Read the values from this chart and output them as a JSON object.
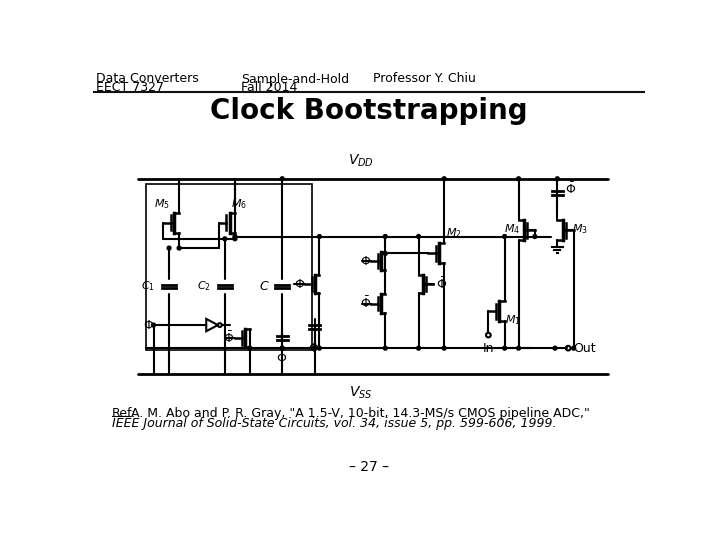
{
  "header_left_line1": "Data Converters",
  "header_left_line2": "EECT 7327",
  "header_center_line1": "Sample-and-Hold",
  "header_center_line2": "Fall 2014",
  "header_right": "Professor Y. Chiu",
  "title": "Clock Bootstrapping",
  "ref_line1": "A. M. Abo and P. R. Gray, \"A 1.5-V, 10-bit, 14.3-MS/s CMOS pipeline ADC,\"",
  "ref_line2": "IEEE Journal of Solid-State Circuits, vol. 34, issue 5, pp. 599-606, 1999.",
  "page_num": "– 27 –",
  "bg_color": "#ffffff",
  "text_color": "#000000",
  "header_fontsize": 9,
  "title_fontsize": 20,
  "ref_fontsize": 9,
  "page_fontsize": 10
}
